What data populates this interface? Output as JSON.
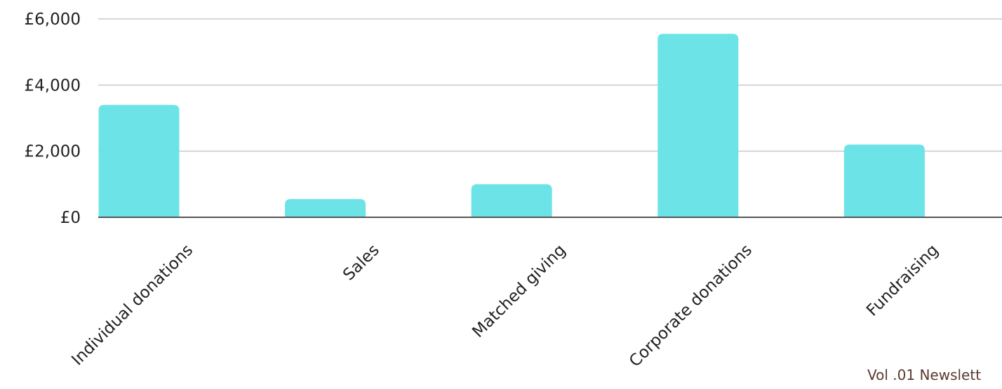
{
  "chart_data": {
    "type": "bar",
    "categories": [
      "Individual donations",
      "Sales",
      "Matched giving",
      "Corporate donations",
      "Fundraising"
    ],
    "values": [
      3400,
      550,
      1000,
      5550,
      2200
    ],
    "ylim": [
      0,
      6000
    ],
    "yticks": [
      0,
      2000,
      4000,
      6000
    ],
    "ytick_labels": [
      "£0",
      "£2,000",
      "£4,000",
      "£6,000"
    ],
    "grid": true,
    "legend": "none",
    "bar_color": "#6ce4e7",
    "grid_color": "#c8c8c8",
    "axis_color": "#555555"
  },
  "footer": {
    "text": "Vol .01 Newslett",
    "color": "#5a3a2e"
  }
}
